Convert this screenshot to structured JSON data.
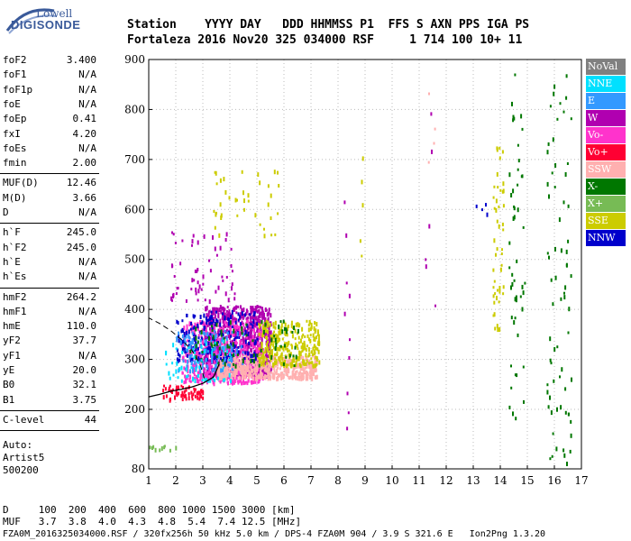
{
  "logo": {
    "line1": "Lowell",
    "line2": "DIGISONDE"
  },
  "header": {
    "row1": "Station    YYYY DAY   DDD HHMMSS P1  FFS S AXN PPS IGA PS",
    "row2": "Fortaleza 2016 Nov20 325 034000 RSF     1 714 100 10+ 11"
  },
  "params_group1": [
    {
      "label": "foF2",
      "value": "3.400"
    },
    {
      "label": "foF1",
      "value": "N/A"
    },
    {
      "label": "foF1p",
      "value": "N/A"
    },
    {
      "label": "foE",
      "value": "N/A"
    },
    {
      "label": "foEp",
      "value": "0.41"
    },
    {
      "label": "fxI",
      "value": "4.20"
    },
    {
      "label": "foEs",
      "value": "N/A"
    },
    {
      "label": "fmin",
      "value": "2.00"
    }
  ],
  "params_group2": [
    {
      "label": "MUF(D)",
      "value": "12.46"
    },
    {
      "label": "M(D)",
      "value": "3.66"
    },
    {
      "label": "D",
      "value": "N/A"
    }
  ],
  "params_group3": [
    {
      "label": "h`F",
      "value": "245.0"
    },
    {
      "label": "h`F2",
      "value": "245.0"
    },
    {
      "label": "h`E",
      "value": "N/A"
    },
    {
      "label": "h`Es",
      "value": "N/A"
    }
  ],
  "params_group4": [
    {
      "label": "hmF2",
      "value": "264.2"
    },
    {
      "label": "hmF1",
      "value": "N/A"
    },
    {
      "label": "hmE",
      "value": "110.0"
    },
    {
      "label": "yF2",
      "value": "37.7"
    },
    {
      "label": "yF1",
      "value": "N/A"
    },
    {
      "label": "yE",
      "value": "20.0"
    },
    {
      "label": "B0",
      "value": "32.1"
    },
    {
      "label": "B1",
      "value": "3.75"
    }
  ],
  "params_group5": [
    {
      "label": "C-level",
      "value": "44"
    }
  ],
  "auto_info": [
    "Auto:",
    "Artist5",
    "500200"
  ],
  "legend": [
    {
      "label": "NoVal",
      "color": "#808080"
    },
    {
      "label": "NNE",
      "color": "#00e0ff"
    },
    {
      "label": "E",
      "color": "#3399ff"
    },
    {
      "label": "W",
      "color": "#b000b0"
    },
    {
      "label": "Vo-",
      "color": "#ff33cc"
    },
    {
      "label": "Vo+",
      "color": "#ff0033"
    },
    {
      "label": "SSW",
      "color": "#ffb0b0"
    },
    {
      "label": "X-",
      "color": "#007700"
    },
    {
      "label": "X+",
      "color": "#77bb55"
    },
    {
      "label": "SSE",
      "color": "#cccc00"
    },
    {
      "label": "NNW",
      "color": "#0000cc"
    }
  ],
  "chart_data": {
    "type": "scatter",
    "x_ticks": [
      1,
      2,
      3,
      4,
      5,
      6,
      7,
      8,
      9,
      10,
      11,
      12,
      13,
      14,
      15,
      16,
      17
    ],
    "y_ticks": [
      80,
      200,
      300,
      400,
      500,
      600,
      700,
      800,
      900
    ],
    "xlim": [
      1,
      17
    ],
    "ylim": [
      80,
      900
    ],
    "grid": true,
    "legend_placement": "right",
    "trace_profile": {
      "dashed_x": [
        3.05,
        2.9,
        2.6,
        2.2,
        1.8,
        1.4,
        1.0
      ],
      "dashed_y": [
        262,
        290,
        318,
        340,
        358,
        372,
        383
      ],
      "solid_x": [
        1.0,
        1.4,
        1.8,
        2.2,
        2.6,
        3.0,
        3.4,
        3.6
      ],
      "solid_y": [
        225,
        230,
        236,
        240,
        245,
        252,
        265,
        290
      ]
    },
    "clusters": [
      {
        "series": "W",
        "x": [
          3.0,
          5.5
        ],
        "y": [
          270,
          410
        ],
        "n": 900
      },
      {
        "series": "Vo-",
        "x": [
          2.2,
          5.2
        ],
        "y": [
          255,
          380
        ],
        "n": 500
      },
      {
        "series": "SSW",
        "x": [
          3.5,
          7.2
        ],
        "y": [
          265,
          310
        ],
        "n": 500
      },
      {
        "series": "SSE",
        "x": [
          5.0,
          7.3
        ],
        "y": [
          290,
          380
        ],
        "n": 300
      },
      {
        "series": "NNW",
        "x": [
          2.0,
          5.0
        ],
        "y": [
          300,
          400
        ],
        "n": 200
      },
      {
        "series": "E",
        "x": [
          2.0,
          4.5
        ],
        "y": [
          280,
          360
        ],
        "n": 120
      },
      {
        "series": "X-",
        "x": [
          2.5,
          6.5
        ],
        "y": [
          290,
          380
        ],
        "n": 80
      },
      {
        "series": "NNE",
        "x": [
          1.5,
          4.0
        ],
        "y": [
          260,
          340
        ],
        "n": 60
      },
      {
        "series": "Vo+",
        "x": [
          1.5,
          3.0
        ],
        "y": [
          222,
          250
        ],
        "n": 60
      },
      {
        "series": "SSE",
        "x": [
          3.3,
          5.8
        ],
        "y": [
          550,
          680
        ],
        "n": 40
      },
      {
        "series": "W",
        "x": [
          1.8,
          4.2
        ],
        "y": [
          420,
          560
        ],
        "n": 60
      },
      {
        "series": "SSE",
        "x": [
          13.7,
          14.1
        ],
        "y": [
          360,
          730
        ],
        "n": 50
      },
      {
        "series": "X-",
        "x": [
          14.3,
          14.9
        ],
        "y": [
          180,
          880
        ],
        "n": 50
      },
      {
        "series": "X-",
        "x": [
          15.7,
          16.6
        ],
        "y": [
          90,
          880
        ],
        "n": 70
      },
      {
        "series": "W",
        "x": [
          11.2,
          11.6
        ],
        "y": [
          400,
          800
        ],
        "n": 6
      },
      {
        "series": "SSW",
        "x": [
          11.2,
          11.6
        ],
        "y": [
          600,
          890
        ],
        "n": 4
      },
      {
        "series": "W",
        "x": [
          8.2,
          8.5
        ],
        "y": [
          150,
          680
        ],
        "n": 10
      },
      {
        "series": "SSE",
        "x": [
          8.7,
          8.9
        ],
        "y": [
          420,
          890
        ],
        "n": 5
      },
      {
        "series": "X+",
        "x": [
          1.0,
          2.0
        ],
        "y": [
          120,
          130
        ],
        "n": 10
      },
      {
        "series": "NNW",
        "x": [
          13.0,
          13.5
        ],
        "y": [
          590,
          620
        ],
        "n": 4
      }
    ]
  },
  "footer": {
    "line1": "D     100  200  400  600  800 1000 1500 3000 [km]",
    "line2": "MUF   3.7  3.8  4.0  4.3  4.8  5.4  7.4 12.5 [MHz]",
    "line3": "FZA0M_2016325034000.RSF / 320fx256h 50 kHz 5.0 km / DPS-4 FZA0M 904 / 3.9 S 321.6 E   Ion2Png 1.3.20"
  }
}
